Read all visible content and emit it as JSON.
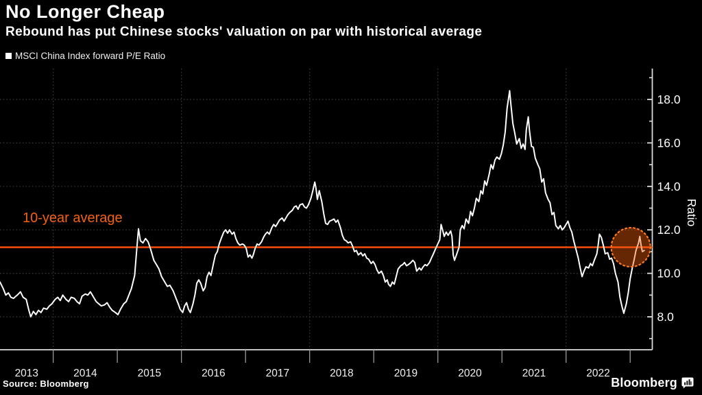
{
  "header": {
    "title": "No Longer Cheap",
    "subtitle": "Rebound has put Chinese stocks' valuation on par with historical average"
  },
  "legend": {
    "label": "MSCI China Index forward P/E Ratio"
  },
  "annotations": {
    "average_label": "10-year average"
  },
  "footer": {
    "source": "Source:  Bloomberg",
    "brand": "Bloomberg"
  },
  "colors": {
    "background": "#000000",
    "text": "#ffffff",
    "series_line": "#ffffff",
    "accent_orange": "#f2480a",
    "highlight_ring": "#ff7a1a",
    "highlight_fill": "rgba(242,92,10,0.42)",
    "grid": "#3f3f3f",
    "axis": "#dddddd",
    "divider": "#999999"
  },
  "chart_data": {
    "type": "line",
    "title": "MSCI China Index forward P/E Ratio",
    "xlabel": "",
    "ylabel": "Ratio",
    "x_unit": "decimal_year",
    "x_range": [
      2013.17,
      2023.345
    ],
    "ylim": [
      6.5,
      19.5
    ],
    "y_ticks_major": [
      8,
      10,
      12,
      14,
      16,
      18
    ],
    "y_ticks_minor": [
      7,
      9,
      11,
      13,
      15,
      17,
      19
    ],
    "x_years": [
      2013,
      2014,
      2015,
      2016,
      2017,
      2018,
      2019,
      2020,
      2021,
      2022
    ],
    "gridline_years": [
      2014,
      2016,
      2018,
      2020,
      2022
    ],
    "grid": true,
    "legend_position": "top-left",
    "average_line": 11.2,
    "highlight": {
      "x_year": 2023.01,
      "value": 11.2,
      "radius_px": 28.5
    },
    "series_name": "MSCI China Index forward P/E Ratio",
    "points": [
      [
        2013.17,
        9.6
      ],
      [
        2013.22,
        9.3
      ],
      [
        2013.26,
        9.0
      ],
      [
        2013.3,
        9.1
      ],
      [
        2013.34,
        8.9
      ],
      [
        2013.38,
        8.85
      ],
      [
        2013.44,
        9.0
      ],
      [
        2013.49,
        9.15
      ],
      [
        2013.53,
        8.9
      ],
      [
        2013.58,
        8.8
      ],
      [
        2013.62,
        8.3
      ],
      [
        2013.65,
        8.0
      ],
      [
        2013.69,
        8.25
      ],
      [
        2013.73,
        8.1
      ],
      [
        2013.77,
        8.3
      ],
      [
        2013.81,
        8.2
      ],
      [
        2013.85,
        8.4
      ],
      [
        2013.9,
        8.35
      ],
      [
        2013.94,
        8.5
      ],
      [
        2013.98,
        8.6
      ],
      [
        2014.03,
        8.8
      ],
      [
        2014.07,
        8.9
      ],
      [
        2014.11,
        8.75
      ],
      [
        2014.15,
        9.0
      ],
      [
        2014.2,
        8.8
      ],
      [
        2014.24,
        8.7
      ],
      [
        2014.28,
        8.9
      ],
      [
        2014.33,
        8.85
      ],
      [
        2014.37,
        8.7
      ],
      [
        2014.41,
        8.6
      ],
      [
        2014.45,
        8.95
      ],
      [
        2014.5,
        9.05
      ],
      [
        2014.54,
        9.0
      ],
      [
        2014.58,
        9.15
      ],
      [
        2014.62,
        8.95
      ],
      [
        2014.67,
        8.7
      ],
      [
        2014.71,
        8.6
      ],
      [
        2014.75,
        8.5
      ],
      [
        2014.8,
        8.55
      ],
      [
        2014.84,
        8.65
      ],
      [
        2014.88,
        8.45
      ],
      [
        2014.92,
        8.3
      ],
      [
        2014.97,
        8.2
      ],
      [
        2015.01,
        8.1
      ],
      [
        2015.05,
        8.35
      ],
      [
        2015.1,
        8.6
      ],
      [
        2015.14,
        8.7
      ],
      [
        2015.18,
        9.0
      ],
      [
        2015.22,
        9.3
      ],
      [
        2015.27,
        9.9
      ],
      [
        2015.3,
        11.0
      ],
      [
        2015.33,
        12.05
      ],
      [
        2015.36,
        11.5
      ],
      [
        2015.4,
        11.4
      ],
      [
        2015.44,
        11.6
      ],
      [
        2015.48,
        11.45
      ],
      [
        2015.52,
        11.1
      ],
      [
        2015.57,
        10.6
      ],
      [
        2015.61,
        10.4
      ],
      [
        2015.65,
        10.2
      ],
      [
        2015.69,
        9.85
      ],
      [
        2015.74,
        9.6
      ],
      [
        2015.78,
        9.4
      ],
      [
        2015.82,
        9.45
      ],
      [
        2015.87,
        9.2
      ],
      [
        2015.91,
        8.9
      ],
      [
        2015.95,
        8.6
      ],
      [
        2015.98,
        8.35
      ],
      [
        2016.02,
        8.2
      ],
      [
        2016.05,
        8.5
      ],
      [
        2016.08,
        8.65
      ],
      [
        2016.11,
        8.35
      ],
      [
        2016.14,
        8.2
      ],
      [
        2016.18,
        8.6
      ],
      [
        2016.21,
        9.0
      ],
      [
        2016.24,
        9.55
      ],
      [
        2016.27,
        9.7
      ],
      [
        2016.3,
        9.55
      ],
      [
        2016.34,
        9.2
      ],
      [
        2016.37,
        9.35
      ],
      [
        2016.4,
        9.85
      ],
      [
        2016.43,
        10.05
      ],
      [
        2016.46,
        9.9
      ],
      [
        2016.5,
        10.45
      ],
      [
        2016.53,
        10.85
      ],
      [
        2016.56,
        11.0
      ],
      [
        2016.59,
        11.35
      ],
      [
        2016.62,
        11.6
      ],
      [
        2016.66,
        11.9
      ],
      [
        2016.69,
        12.0
      ],
      [
        2016.72,
        11.85
      ],
      [
        2016.75,
        12.0
      ],
      [
        2016.79,
        11.8
      ],
      [
        2016.82,
        11.9
      ],
      [
        2016.85,
        11.6
      ],
      [
        2016.88,
        11.4
      ],
      [
        2016.91,
        11.3
      ],
      [
        2016.95,
        11.35
      ],
      [
        2016.98,
        11.3
      ],
      [
        2017.01,
        11.15
      ],
      [
        2017.04,
        10.75
      ],
      [
        2017.07,
        10.85
      ],
      [
        2017.1,
        10.7
      ],
      [
        2017.12,
        10.85
      ],
      [
        2017.15,
        11.15
      ],
      [
        2017.18,
        11.35
      ],
      [
        2017.21,
        11.3
      ],
      [
        2017.25,
        11.45
      ],
      [
        2017.28,
        11.65
      ],
      [
        2017.31,
        11.8
      ],
      [
        2017.34,
        11.9
      ],
      [
        2017.37,
        11.8
      ],
      [
        2017.41,
        12.1
      ],
      [
        2017.44,
        12.25
      ],
      [
        2017.47,
        12.15
      ],
      [
        2017.5,
        12.3
      ],
      [
        2017.53,
        12.45
      ],
      [
        2017.57,
        12.55
      ],
      [
        2017.6,
        12.4
      ],
      [
        2017.63,
        12.55
      ],
      [
        2017.66,
        12.7
      ],
      [
        2017.69,
        12.8
      ],
      [
        2017.73,
        12.9
      ],
      [
        2017.76,
        13.05
      ],
      [
        2017.79,
        13.1
      ],
      [
        2017.82,
        12.95
      ],
      [
        2017.85,
        13.15
      ],
      [
        2017.89,
        13.2
      ],
      [
        2017.92,
        13.05
      ],
      [
        2017.95,
        13.0
      ],
      [
        2017.98,
        13.15
      ],
      [
        2018.02,
        13.45
      ],
      [
        2018.05,
        13.8
      ],
      [
        2018.08,
        14.2
      ],
      [
        2018.1,
        13.9
      ],
      [
        2018.12,
        13.4
      ],
      [
        2018.15,
        13.8
      ],
      [
        2018.19,
        13.3
      ],
      [
        2018.22,
        12.75
      ],
      [
        2018.25,
        12.3
      ],
      [
        2018.28,
        12.25
      ],
      [
        2018.31,
        12.4
      ],
      [
        2018.35,
        12.45
      ],
      [
        2018.38,
        12.5
      ],
      [
        2018.41,
        12.35
      ],
      [
        2018.44,
        12.45
      ],
      [
        2018.48,
        12.1
      ],
      [
        2018.51,
        11.75
      ],
      [
        2018.54,
        11.55
      ],
      [
        2018.57,
        11.5
      ],
      [
        2018.6,
        11.4
      ],
      [
        2018.64,
        11.45
      ],
      [
        2018.67,
        11.25
      ],
      [
        2018.7,
        11.0
      ],
      [
        2018.73,
        11.05
      ],
      [
        2018.76,
        10.85
      ],
      [
        2018.8,
        10.95
      ],
      [
        2018.83,
        10.8
      ],
      [
        2018.86,
        10.9
      ],
      [
        2018.89,
        10.7
      ],
      [
        2018.92,
        10.65
      ],
      [
        2018.96,
        10.45
      ],
      [
        2018.99,
        10.55
      ],
      [
        2019.02,
        10.4
      ],
      [
        2019.05,
        10.15
      ],
      [
        2019.08,
        10.0
      ],
      [
        2019.12,
        10.1
      ],
      [
        2019.15,
        9.9
      ],
      [
        2019.18,
        9.6
      ],
      [
        2019.21,
        9.7
      ],
      [
        2019.23,
        9.5
      ],
      [
        2019.26,
        9.4
      ],
      [
        2019.29,
        9.6
      ],
      [
        2019.32,
        9.5
      ],
      [
        2019.35,
        9.85
      ],
      [
        2019.38,
        10.2
      ],
      [
        2019.42,
        10.35
      ],
      [
        2019.45,
        10.4
      ],
      [
        2019.48,
        10.5
      ],
      [
        2019.51,
        10.35
      ],
      [
        2019.54,
        10.4
      ],
      [
        2019.58,
        10.5
      ],
      [
        2019.61,
        10.6
      ],
      [
        2019.64,
        10.5
      ],
      [
        2019.67,
        10.1
      ],
      [
        2019.71,
        10.25
      ],
      [
        2019.74,
        10.15
      ],
      [
        2019.77,
        10.3
      ],
      [
        2019.8,
        10.4
      ],
      [
        2019.83,
        10.35
      ],
      [
        2019.87,
        10.5
      ],
      [
        2019.9,
        10.7
      ],
      [
        2019.93,
        10.9
      ],
      [
        2019.96,
        11.1
      ],
      [
        2019.99,
        11.3
      ],
      [
        2020.03,
        11.55
      ],
      [
        2020.05,
        12.25
      ],
      [
        2020.07,
        12.05
      ],
      [
        2020.1,
        11.7
      ],
      [
        2020.13,
        11.9
      ],
      [
        2020.16,
        11.75
      ],
      [
        2020.2,
        11.95
      ],
      [
        2020.22,
        11.7
      ],
      [
        2020.24,
        10.85
      ],
      [
        2020.26,
        10.6
      ],
      [
        2020.29,
        10.85
      ],
      [
        2020.33,
        11.2
      ],
      [
        2020.35,
        12.0
      ],
      [
        2020.38,
        12.2
      ],
      [
        2020.41,
        12.05
      ],
      [
        2020.44,
        12.5
      ],
      [
        2020.48,
        12.3
      ],
      [
        2020.51,
        12.85
      ],
      [
        2020.54,
        12.65
      ],
      [
        2020.57,
        13.0
      ],
      [
        2020.6,
        13.45
      ],
      [
        2020.64,
        13.3
      ],
      [
        2020.67,
        13.8
      ],
      [
        2020.7,
        13.65
      ],
      [
        2020.73,
        14.25
      ],
      [
        2020.76,
        14.05
      ],
      [
        2020.8,
        14.55
      ],
      [
        2020.83,
        15.0
      ],
      [
        2020.86,
        14.8
      ],
      [
        2020.89,
        15.2
      ],
      [
        2020.92,
        15.35
      ],
      [
        2020.96,
        15.25
      ],
      [
        2020.99,
        15.5
      ],
      [
        2021.02,
        15.9
      ],
      [
        2021.05,
        16.5
      ],
      [
        2021.08,
        17.6
      ],
      [
        2021.12,
        18.4
      ],
      [
        2021.14,
        17.75
      ],
      [
        2021.17,
        16.9
      ],
      [
        2021.2,
        16.45
      ],
      [
        2021.23,
        15.95
      ],
      [
        2021.27,
        16.2
      ],
      [
        2021.3,
        15.75
      ],
      [
        2021.33,
        15.95
      ],
      [
        2021.36,
        15.7
      ],
      [
        2021.38,
        16.6
      ],
      [
        2021.41,
        17.2
      ],
      [
        2021.43,
        16.55
      ],
      [
        2021.46,
        15.85
      ],
      [
        2021.49,
        15.8
      ],
      [
        2021.52,
        15.3
      ],
      [
        2021.56,
        15.0
      ],
      [
        2021.59,
        14.8
      ],
      [
        2021.62,
        14.2
      ],
      [
        2021.65,
        14.35
      ],
      [
        2021.68,
        13.7
      ],
      [
        2021.72,
        13.4
      ],
      [
        2021.75,
        13.25
      ],
      [
        2021.78,
        12.7
      ],
      [
        2021.81,
        12.8
      ],
      [
        2021.84,
        12.2
      ],
      [
        2021.88,
        12.05
      ],
      [
        2021.91,
        12.2
      ],
      [
        2021.94,
        12.0
      ],
      [
        2021.97,
        12.1
      ],
      [
        2022.0,
        12.25
      ],
      [
        2022.03,
        12.4
      ],
      [
        2022.06,
        12.1
      ],
      [
        2022.09,
        11.9
      ],
      [
        2022.12,
        11.5
      ],
      [
        2022.15,
        11.15
      ],
      [
        2022.19,
        10.7
      ],
      [
        2022.22,
        10.25
      ],
      [
        2022.25,
        9.85
      ],
      [
        2022.28,
        10.1
      ],
      [
        2022.31,
        10.3
      ],
      [
        2022.35,
        10.25
      ],
      [
        2022.38,
        10.45
      ],
      [
        2022.41,
        10.35
      ],
      [
        2022.44,
        10.6
      ],
      [
        2022.48,
        10.9
      ],
      [
        2022.5,
        11.3
      ],
      [
        2022.52,
        11.8
      ],
      [
        2022.55,
        11.65
      ],
      [
        2022.58,
        11.3
      ],
      [
        2022.61,
        10.9
      ],
      [
        2022.65,
        10.95
      ],
      [
        2022.68,
        10.65
      ],
      [
        2022.71,
        10.7
      ],
      [
        2022.74,
        10.45
      ],
      [
        2022.77,
        10.0
      ],
      [
        2022.81,
        9.6
      ],
      [
        2022.84,
        8.9
      ],
      [
        2022.87,
        8.5
      ],
      [
        2022.9,
        8.16
      ],
      [
        2022.94,
        8.6
      ],
      [
        2022.97,
        9.1
      ],
      [
        2023.0,
        9.75
      ],
      [
        2023.03,
        10.2
      ],
      [
        2023.06,
        10.6
      ],
      [
        2023.09,
        11.05
      ],
      [
        2023.13,
        11.4
      ],
      [
        2023.15,
        11.7
      ],
      [
        2023.17,
        11.3
      ],
      [
        2023.19,
        11.0
      ],
      [
        2023.22,
        11.05
      ]
    ]
  }
}
